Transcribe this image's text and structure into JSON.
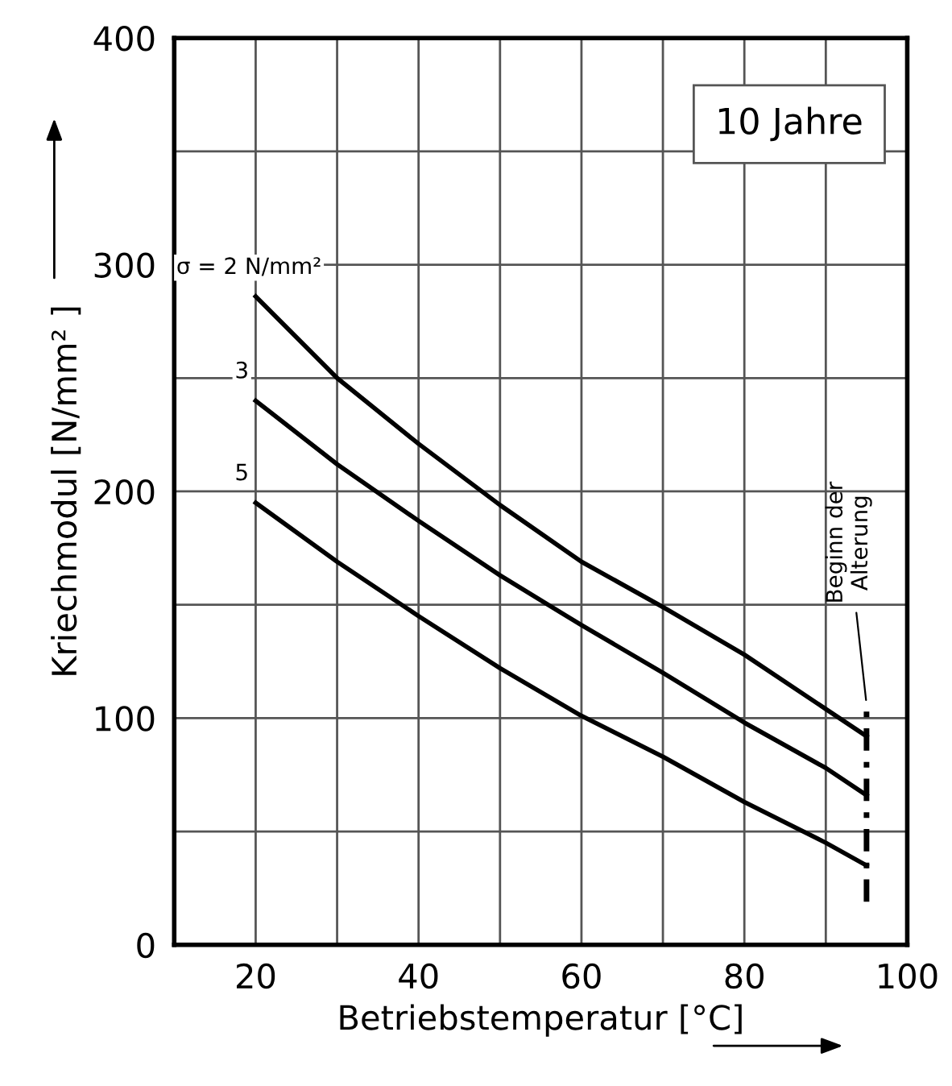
{
  "chart_data": {
    "type": "line",
    "xlabel": "Betriebstemperatur [°C]",
    "ylabel": "Kriechmodul [N/mm² ]",
    "xlim": [
      10,
      100
    ],
    "ylim": [
      0,
      400
    ],
    "xticks": [
      20,
      {
        "value": 30,
        "label": null
      },
      40,
      {
        "value": 50,
        "label": null
      },
      60,
      {
        "value": 70,
        "label": null
      },
      80,
      {
        "value": 90,
        "label": null
      },
      100
    ],
    "yticks": [
      0,
      {
        "value": 50,
        "label": null
      },
      100,
      {
        "value": 150,
        "label": null
      },
      200,
      {
        "value": 250,
        "label": null
      },
      300,
      {
        "value": 350,
        "label": null
      },
      400
    ],
    "grid": true,
    "legend": false,
    "marker": "none",
    "x": [
      20,
      30,
      40,
      50,
      60,
      70,
      80,
      90,
      95
    ],
    "series": [
      {
        "name": "σ = 2 N/mm²",
        "color": "#000000",
        "values": [
          286,
          250,
          221,
          194,
          169,
          149,
          128,
          104,
          92
        ]
      },
      {
        "name": "3",
        "color": "#000000",
        "values": [
          240,
          212,
          187,
          163,
          141,
          120,
          98,
          78,
          66
        ]
      },
      {
        "name": "5",
        "color": "#000000",
        "values": [
          195,
          169,
          145,
          122,
          101,
          83,
          63,
          45,
          35
        ]
      },
      {
        "type": "line",
        "x": [
          95,
          95
        ],
        "values": [
          19,
          106
        ],
        "color": "#000000",
        "line_style": "dashed"
      }
    ],
    "annotations": [
      "10 Jahre",
      {
        "text": "Beginn der\nAlterung",
        "x": 95,
        "y": 106
      }
    ]
  }
}
